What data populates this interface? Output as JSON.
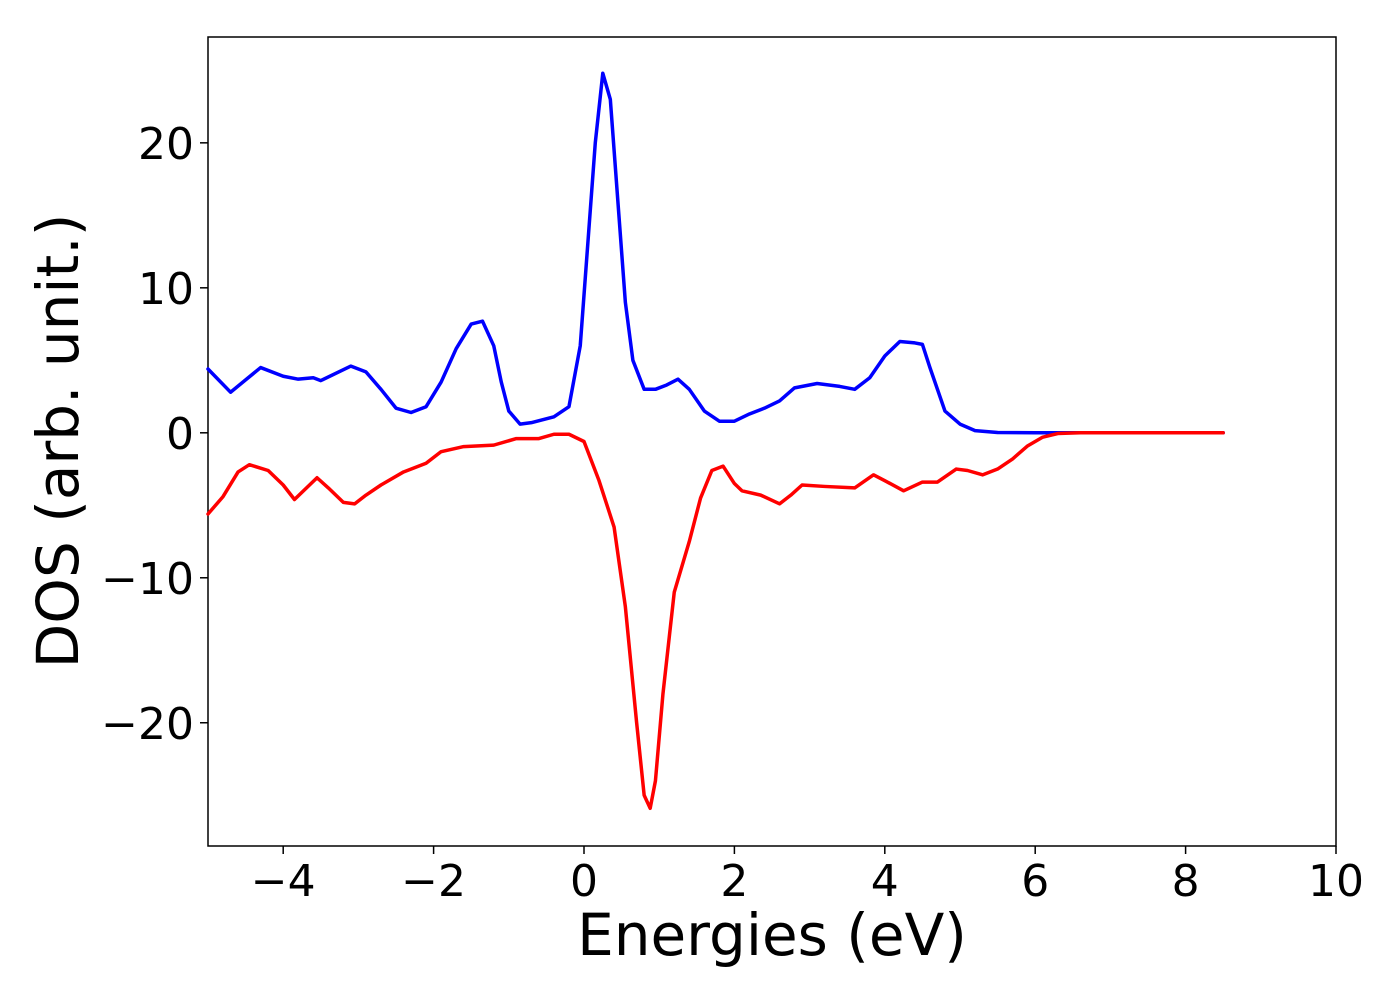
{
  "chart_data": {
    "type": "line",
    "xlabel": "Energies (eV)",
    "ylabel": "DOS (arb. unit.)",
    "xlim": [
      -5,
      10
    ],
    "ylim": [
      -28.5,
      27.3
    ],
    "xticks": [
      {
        "value": -4,
        "label": "−4"
      },
      {
        "value": -2,
        "label": "−2"
      },
      0,
      2,
      4,
      6,
      8,
      10
    ],
    "yticks": [
      {
        "value": -20,
        "label": "−20"
      },
      {
        "value": -10,
        "label": "−10"
      },
      0,
      10,
      20
    ],
    "grid": false,
    "series": [
      {
        "color": "#0000ff",
        "x": [
          -5,
          -4.7,
          -4.3,
          -4.0,
          -3.8,
          -3.6,
          -3.5,
          -3.1,
          -2.9,
          -2.7,
          -2.5,
          -2.3,
          -2.1,
          -1.9,
          -1.7,
          -1.5,
          -1.35,
          -1.2,
          -1.1,
          -1.0,
          -0.85,
          -0.7,
          -0.4,
          -0.2,
          -0.05,
          0.05,
          0.15,
          0.25,
          0.35,
          0.45,
          0.55,
          0.65,
          0.8,
          0.95,
          1.1,
          1.25,
          1.4,
          1.6,
          1.8,
          2.0,
          2.2,
          2.4,
          2.6,
          2.8,
          3.1,
          3.4,
          3.6,
          3.8,
          4.0,
          4.2,
          4.4,
          4.5,
          4.6,
          4.8,
          5.0,
          5.2,
          5.5,
          6.0,
          8.5
        ],
        "values": [
          4.4,
          2.8,
          4.5,
          3.9,
          3.7,
          3.8,
          3.6,
          4.6,
          4.2,
          3.0,
          1.7,
          1.4,
          1.8,
          3.5,
          5.8,
          7.5,
          7.7,
          6.0,
          3.5,
          1.5,
          0.6,
          0.7,
          1.1,
          1.8,
          6.0,
          13,
          20,
          24.8,
          23,
          16,
          9,
          5,
          3.0,
          3.0,
          3.3,
          3.7,
          3.0,
          1.5,
          0.8,
          0.8,
          1.3,
          1.7,
          2.2,
          3.1,
          3.4,
          3.2,
          3.0,
          3.8,
          5.3,
          6.3,
          6.2,
          6.1,
          4.5,
          1.5,
          0.6,
          0.15,
          0.02,
          0,
          0
        ]
      },
      {
        "color": "#ff0000",
        "x": [
          -5,
          -4.8,
          -4.6,
          -4.45,
          -4.2,
          -4.0,
          -3.85,
          -3.65,
          -3.55,
          -3.4,
          -3.2,
          -3.05,
          -2.9,
          -2.7,
          -2.4,
          -2.1,
          -1.9,
          -1.6,
          -1.2,
          -0.9,
          -0.6,
          -0.4,
          -0.2,
          0.0,
          0.2,
          0.4,
          0.55,
          0.7,
          0.8,
          0.88,
          0.95,
          1.05,
          1.2,
          1.4,
          1.55,
          1.7,
          1.85,
          2.0,
          2.1,
          2.35,
          2.6,
          2.75,
          2.9,
          3.2,
          3.6,
          3.85,
          4.0,
          4.25,
          4.5,
          4.7,
          4.95,
          5.1,
          5.3,
          5.5,
          5.7,
          5.9,
          6.1,
          6.3,
          6.6,
          8.5
        ],
        "values": [
          -5.6,
          -4.4,
          -2.7,
          -2.2,
          -2.6,
          -3.6,
          -4.6,
          -3.6,
          -3.1,
          -3.8,
          -4.8,
          -4.9,
          -4.3,
          -3.6,
          -2.7,
          -2.1,
          -1.3,
          -0.95,
          -0.85,
          -0.4,
          -0.4,
          -0.1,
          -0.1,
          -0.6,
          -3.3,
          -6.5,
          -12,
          -20,
          -25,
          -25.9,
          -24,
          -18,
          -11,
          -7.5,
          -4.5,
          -2.6,
          -2.3,
          -3.5,
          -4.0,
          -4.3,
          -4.9,
          -4.3,
          -3.6,
          -3.7,
          -3.8,
          -2.9,
          -3.3,
          -4.0,
          -3.4,
          -3.4,
          -2.5,
          -2.6,
          -2.9,
          -2.5,
          -1.8,
          -0.9,
          -0.3,
          -0.05,
          0,
          0
        ]
      }
    ]
  }
}
